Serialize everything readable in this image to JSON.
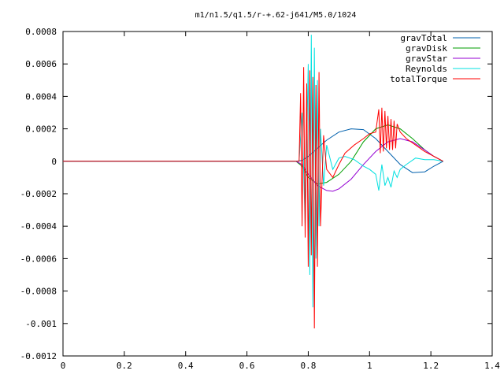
{
  "chart_data": {
    "type": "line",
    "title": "m1/n1.5/q1.5/r-+.62-j641/M5.0/1024",
    "xlabel": "",
    "ylabel": "",
    "xlim": [
      0,
      1.4
    ],
    "ylim": [
      -0.0012,
      0.0008
    ],
    "xticks": [
      0,
      0.2,
      0.4,
      0.6,
      0.8,
      1,
      1.2,
      1.4
    ],
    "xtick_labels": [
      "0",
      "0.2",
      "0.4",
      "0.6",
      "0.8",
      "1",
      "1.2",
      "1.4"
    ],
    "yticks": [
      0.0008,
      0.0006,
      0.0004,
      0.0002,
      0,
      -0.0002,
      -0.0004,
      -0.0006,
      -0.0008,
      -0.001,
      -0.0012
    ],
    "ytick_labels": [
      "0.0008",
      "0.0006",
      "0.0004",
      "0.0002",
      "0",
      "-0.0002",
      "-0.0004",
      "-0.0006",
      "-0.0008",
      "-0.001",
      "-0.0012"
    ],
    "grid": false,
    "legend_position": "top-right",
    "series": [
      {
        "name": "gravTotal",
        "color": "#0060ad",
        "x": [
          0,
          0.76,
          0.78,
          0.8,
          0.83,
          0.86,
          0.9,
          0.94,
          0.98,
          1.02,
          1.06,
          1.1,
          1.14,
          1.18,
          1.21,
          1.24
        ],
        "y": [
          0,
          0,
          5e-06,
          3e-05,
          8e-05,
          0.00013,
          0.00018,
          0.0002,
          0.000195,
          0.00014,
          6e-05,
          -2e-05,
          -7e-05,
          -6.5e-05,
          -3e-05,
          0
        ]
      },
      {
        "name": "gravDisk",
        "color": "#009e00",
        "x": [
          0,
          0.76,
          0.78,
          0.8,
          0.83,
          0.86,
          0.9,
          0.94,
          0.98,
          1.02,
          1.06,
          1.1,
          1.14,
          1.18,
          1.21,
          1.24
        ],
        "y": [
          0,
          0,
          -3e-05,
          -0.0001,
          -0.00014,
          -0.00013,
          -8e-05,
          0,
          0.00012,
          0.0002,
          0.000225,
          0.0002,
          0.00014,
          7e-05,
          3e-05,
          0
        ]
      },
      {
        "name": "gravStar",
        "color": "#9400d3",
        "x": [
          0,
          0.76,
          0.78,
          0.8,
          0.83,
          0.86,
          0.88,
          0.9,
          0.94,
          0.98,
          1.02,
          1.06,
          1.1,
          1.14,
          1.18,
          1.21,
          1.24
        ],
        "y": [
          0,
          0,
          -2e-05,
          -8e-05,
          -0.00015,
          -0.00018,
          -0.000185,
          -0.00017,
          -0.00011,
          -2e-05,
          6e-05,
          0.00012,
          0.00014,
          0.00012,
          7e-05,
          3e-05,
          0
        ]
      },
      {
        "name": "Reynolds",
        "color": "#00e0e0",
        "x": [
          0,
          0.77,
          0.78,
          0.79,
          0.8,
          0.805,
          0.81,
          0.815,
          0.82,
          0.825,
          0.83,
          0.835,
          0.84,
          0.85,
          0.86,
          0.88,
          0.9,
          0.92,
          0.95,
          0.98,
          1.0,
          1.02,
          1.03,
          1.04,
          1.05,
          1.06,
          1.07,
          1.08,
          1.09,
          1.1,
          1.12,
          1.15,
          1.18,
          1.21,
          1.24
        ],
        "y": [
          0,
          0,
          0.0003,
          -0.0004,
          0.0006,
          -0.0007,
          0.00078,
          -0.0009,
          0.0007,
          -0.0006,
          0.0005,
          -0.0004,
          0.0002,
          -0.00015,
          0.0001,
          -5e-05,
          2e-05,
          3e-05,
          1e-05,
          -3e-05,
          -5e-05,
          -8e-05,
          -0.00018,
          -2e-05,
          -0.00015,
          -0.0001,
          -0.00016,
          -6e-05,
          -0.0001,
          -5e-05,
          -2e-05,
          2e-05,
          1e-05,
          1e-05,
          0
        ]
      },
      {
        "name": "totalTorque",
        "color": "#ff0000",
        "x": [
          0,
          0.77,
          0.775,
          0.78,
          0.785,
          0.79,
          0.795,
          0.8,
          0.805,
          0.81,
          0.815,
          0.82,
          0.825,
          0.83,
          0.835,
          0.84,
          0.85,
          0.86,
          0.88,
          0.9,
          0.92,
          0.95,
          0.98,
          1.0,
          1.02,
          1.03,
          1.035,
          1.04,
          1.045,
          1.05,
          1.055,
          1.06,
          1.065,
          1.07,
          1.075,
          1.08,
          1.085,
          1.09,
          1.1,
          1.12,
          1.15,
          1.18,
          1.21,
          1.24
        ],
        "y": [
          0,
          0,
          0.00042,
          -0.0004,
          0.00058,
          -0.00047,
          0.00048,
          -0.00065,
          0.00056,
          -0.00058,
          0.00052,
          -0.00103,
          0.00047,
          -0.00065,
          0.00055,
          -0.0004,
          0.00016,
          -5e-05,
          -0.0001,
          -2e-05,
          5e-05,
          0.0001,
          0.00014,
          0.00017,
          0.00018,
          0.00032,
          5e-05,
          0.00033,
          6e-05,
          0.00031,
          8e-05,
          0.00028,
          7e-05,
          0.00026,
          7e-05,
          0.00025,
          8e-05,
          0.00023,
          0.00018,
          0.00014,
          0.0001,
          6e-05,
          3e-05,
          0
        ]
      }
    ]
  }
}
